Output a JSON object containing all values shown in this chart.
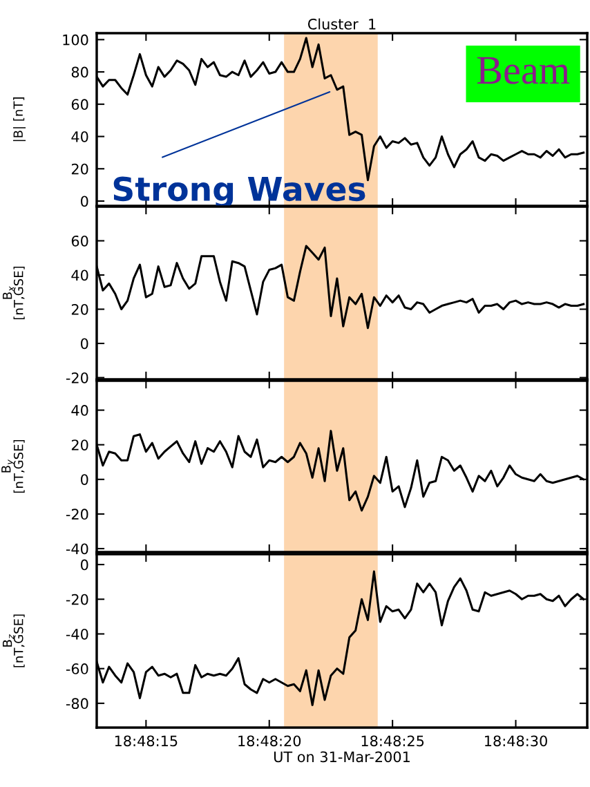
{
  "chart_data": [
    {
      "type": "line",
      "title": "Cluster  1",
      "ylabel": "|B| [nT]",
      "tick_labels": "y",
      "grid": false,
      "marker": "none",
      "line_style": "solid",
      "x": [
        "2001-03-31T18:48:13.00",
        "2001-03-31T18:48:13.25",
        "2001-03-31T18:48:13.50",
        "2001-03-31T18:48:13.75",
        "2001-03-31T18:48:14.00",
        "2001-03-31T18:48:14.25",
        "2001-03-31T18:48:14.50",
        "2001-03-31T18:48:14.75",
        "2001-03-31T18:48:15.00",
        "2001-03-31T18:48:15.25",
        "2001-03-31T18:48:15.50",
        "2001-03-31T18:48:15.75",
        "2001-03-31T18:48:16.00",
        "2001-03-31T18:48:16.25",
        "2001-03-31T18:48:16.50",
        "2001-03-31T18:48:16.75",
        "2001-03-31T18:48:17.00",
        "2001-03-31T18:48:17.25",
        "2001-03-31T18:48:17.50",
        "2001-03-31T18:48:17.75",
        "2001-03-31T18:48:18.00",
        "2001-03-31T18:48:18.25",
        "2001-03-31T18:48:18.50",
        "2001-03-31T18:48:18.75",
        "2001-03-31T18:48:19.00",
        "2001-03-31T18:48:19.25",
        "2001-03-31T18:48:19.50",
        "2001-03-31T18:48:19.75",
        "2001-03-31T18:48:20.00",
        "2001-03-31T18:48:20.25",
        "2001-03-31T18:48:20.50",
        "2001-03-31T18:48:20.75",
        "2001-03-31T18:48:21.00",
        "2001-03-31T18:48:21.25",
        "2001-03-31T18:48:21.50",
        "2001-03-31T18:48:21.75",
        "2001-03-31T18:48:22.00",
        "2001-03-31T18:48:22.25",
        "2001-03-31T18:48:22.50",
        "2001-03-31T18:48:22.75",
        "2001-03-31T18:48:23.00",
        "2001-03-31T18:48:23.25",
        "2001-03-31T18:48:23.50",
        "2001-03-31T18:48:23.75",
        "2001-03-31T18:48:24.00",
        "2001-03-31T18:48:24.25",
        "2001-03-31T18:48:24.50",
        "2001-03-31T18:48:24.75",
        "2001-03-31T18:48:25.00",
        "2001-03-31T18:48:25.25",
        "2001-03-31T18:48:25.50",
        "2001-03-31T18:48:25.75",
        "2001-03-31T18:48:26.00",
        "2001-03-31T18:48:26.25",
        "2001-03-31T18:48:26.50",
        "2001-03-31T18:48:26.75",
        "2001-03-31T18:48:27.00",
        "2001-03-31T18:48:27.25",
        "2001-03-31T18:48:27.50",
        "2001-03-31T18:48:27.75",
        "2001-03-31T18:48:28.00",
        "2001-03-31T18:48:28.25",
        "2001-03-31T18:48:28.50",
        "2001-03-31T18:48:28.75",
        "2001-03-31T18:48:29.00",
        "2001-03-31T18:48:29.25",
        "2001-03-31T18:48:29.50",
        "2001-03-31T18:48:29.75",
        "2001-03-31T18:48:30.00",
        "2001-03-31T18:48:30.25",
        "2001-03-31T18:48:30.50",
        "2001-03-31T18:48:30.75",
        "2001-03-31T18:48:31.00",
        "2001-03-31T18:48:31.25",
        "2001-03-31T18:48:31.50",
        "2001-03-31T18:48:31.75",
        "2001-03-31T18:48:32.00",
        "2001-03-31T18:48:32.25",
        "2001-03-31T18:48:32.50",
        "2001-03-31T18:48:32.75"
      ],
      "series": [
        {
          "color": "#000000",
          "values": [
            77,
            71,
            75,
            75,
            70,
            66,
            78,
            91,
            78,
            71,
            83,
            77,
            81,
            87,
            85,
            81,
            72,
            88,
            83,
            86,
            78,
            77,
            80,
            78,
            87,
            77,
            81,
            86,
            79,
            80,
            86,
            80,
            80,
            88,
            101,
            83,
            97,
            76,
            78,
            69,
            71,
            41,
            43,
            41,
            13,
            34,
            40,
            33,
            37,
            36,
            39,
            35,
            36,
            27,
            22,
            27,
            40,
            29,
            21,
            29,
            32,
            37,
            27,
            25,
            29,
            28,
            25,
            27,
            29,
            31,
            29,
            29,
            27,
            31,
            28,
            32,
            27,
            29,
            29,
            30
          ]
        }
      ],
      "xlim": [
        "2001-03-31T18:48:13.0",
        "2001-03-31T18:48:32.9"
      ],
      "xticks": [
        {
          "value": "2001-03-31T18:48:15",
          "label": null
        },
        {
          "value": "2001-03-31T18:48:20",
          "label": null
        },
        {
          "value": "2001-03-31T18:48:25",
          "label": null
        },
        {
          "value": "2001-03-31T18:48:30",
          "label": null
        }
      ],
      "ylim": [
        -3,
        104
      ],
      "yticks": [
        0,
        20,
        40,
        60,
        80,
        100
      ],
      "bands": [
        {
          "axis": "x",
          "from": "2001-03-31T18:48:20.6",
          "to": "2001-03-31T18:48:24.4",
          "color": "#fdd5ad"
        }
      ],
      "annotations": [
        "Strong Waves",
        "Beam"
      ]
    },
    {
      "type": "line",
      "ylabel": "B$_{x}$\n[nT,GSE]",
      "tick_labels": "y",
      "grid": false,
      "marker": "none",
      "line_style": "solid",
      "x": [
        "2001-03-31T18:48:13.00",
        "2001-03-31T18:48:13.25",
        "2001-03-31T18:48:13.50",
        "2001-03-31T18:48:13.75",
        "2001-03-31T18:48:14.00",
        "2001-03-31T18:48:14.25",
        "2001-03-31T18:48:14.50",
        "2001-03-31T18:48:14.75",
        "2001-03-31T18:48:15.00",
        "2001-03-31T18:48:15.25",
        "2001-03-31T18:48:15.50",
        "2001-03-31T18:48:15.75",
        "2001-03-31T18:48:16.00",
        "2001-03-31T18:48:16.25",
        "2001-03-31T18:48:16.50",
        "2001-03-31T18:48:16.75",
        "2001-03-31T18:48:17.00",
        "2001-03-31T18:48:17.25",
        "2001-03-31T18:48:17.50",
        "2001-03-31T18:48:17.75",
        "2001-03-31T18:48:18.00",
        "2001-03-31T18:48:18.25",
        "2001-03-31T18:48:18.50",
        "2001-03-31T18:48:18.75",
        "2001-03-31T18:48:19.00",
        "2001-03-31T18:48:19.25",
        "2001-03-31T18:48:19.50",
        "2001-03-31T18:48:19.75",
        "2001-03-31T18:48:20.00",
        "2001-03-31T18:48:20.25",
        "2001-03-31T18:48:20.50",
        "2001-03-31T18:48:20.75",
        "2001-03-31T18:48:21.00",
        "2001-03-31T18:48:21.25",
        "2001-03-31T18:48:21.50",
        "2001-03-31T18:48:21.75",
        "2001-03-31T18:48:22.00",
        "2001-03-31T18:48:22.25",
        "2001-03-31T18:48:22.50",
        "2001-03-31T18:48:22.75",
        "2001-03-31T18:48:23.00",
        "2001-03-31T18:48:23.25",
        "2001-03-31T18:48:23.50",
        "2001-03-31T18:48:23.75",
        "2001-03-31T18:48:24.00",
        "2001-03-31T18:48:24.25",
        "2001-03-31T18:48:24.50",
        "2001-03-31T18:48:24.75",
        "2001-03-31T18:48:25.00",
        "2001-03-31T18:48:25.25",
        "2001-03-31T18:48:25.50",
        "2001-03-31T18:48:25.75",
        "2001-03-31T18:48:26.00",
        "2001-03-31T18:48:26.25",
        "2001-03-31T18:48:26.50",
        "2001-03-31T18:48:26.75",
        "2001-03-31T18:48:27.00",
        "2001-03-31T18:48:27.25",
        "2001-03-31T18:48:27.50",
        "2001-03-31T18:48:27.75",
        "2001-03-31T18:48:28.00",
        "2001-03-31T18:48:28.25",
        "2001-03-31T18:48:28.50",
        "2001-03-31T18:48:28.75",
        "2001-03-31T18:48:29.00",
        "2001-03-31T18:48:29.25",
        "2001-03-31T18:48:29.50",
        "2001-03-31T18:48:29.75",
        "2001-03-31T18:48:30.00",
        "2001-03-31T18:48:30.25",
        "2001-03-31T18:48:30.50",
        "2001-03-31T18:48:30.75",
        "2001-03-31T18:48:31.00",
        "2001-03-31T18:48:31.25",
        "2001-03-31T18:48:31.50",
        "2001-03-31T18:48:31.75",
        "2001-03-31T18:48:32.00",
        "2001-03-31T18:48:32.25",
        "2001-03-31T18:48:32.50",
        "2001-03-31T18:48:32.75"
      ],
      "series": [
        {
          "color": "#000000",
          "values": [
            45,
            31,
            35,
            29,
            20,
            25,
            38,
            46,
            27,
            29,
            45,
            33,
            34,
            47,
            38,
            32,
            35,
            51,
            51,
            51,
            36,
            25,
            48,
            47,
            45,
            31,
            17,
            36,
            43,
            44,
            46,
            27,
            25,
            42,
            57,
            53,
            49,
            56,
            16,
            38,
            10,
            27,
            23,
            29,
            9,
            27,
            22,
            28,
            24,
            28,
            21,
            20,
            24,
            23,
            18,
            20,
            22,
            23,
            24,
            25,
            24,
            26,
            18,
            22,
            22,
            23,
            20,
            24,
            25,
            23,
            24,
            23,
            23,
            24,
            23,
            21,
            23,
            22,
            22,
            23
          ]
        }
      ],
      "xlim": [
        "2001-03-31T18:48:13.0",
        "2001-03-31T18:48:32.9"
      ],
      "xticks": [
        {
          "value": "2001-03-31T18:48:15",
          "label": null
        },
        {
          "value": "2001-03-31T18:48:20",
          "label": null
        },
        {
          "value": "2001-03-31T18:48:25",
          "label": null
        },
        {
          "value": "2001-03-31T18:48:30",
          "label": null
        }
      ],
      "ylim": [
        -21,
        80
      ],
      "yticks": [
        -20,
        0,
        20,
        40,
        60
      ],
      "bands": [
        {
          "axis": "x",
          "from": "2001-03-31T18:48:20.6",
          "to": "2001-03-31T18:48:24.4",
          "color": "#fdd5ad"
        }
      ]
    },
    {
      "type": "line",
      "ylabel": "B$_{y}$\n[nT,GSE]",
      "tick_labels": "y",
      "grid": false,
      "marker": "none",
      "line_style": "solid",
      "x": [
        "2001-03-31T18:48:13.00",
        "2001-03-31T18:48:13.25",
        "2001-03-31T18:48:13.50",
        "2001-03-31T18:48:13.75",
        "2001-03-31T18:48:14.00",
        "2001-03-31T18:48:14.25",
        "2001-03-31T18:48:14.50",
        "2001-03-31T18:48:14.75",
        "2001-03-31T18:48:15.00",
        "2001-03-31T18:48:15.25",
        "2001-03-31T18:48:15.50",
        "2001-03-31T18:48:15.75",
        "2001-03-31T18:48:16.00",
        "2001-03-31T18:48:16.25",
        "2001-03-31T18:48:16.50",
        "2001-03-31T18:48:16.75",
        "2001-03-31T18:48:17.00",
        "2001-03-31T18:48:17.25",
        "2001-03-31T18:48:17.50",
        "2001-03-31T18:48:17.75",
        "2001-03-31T18:48:18.00",
        "2001-03-31T18:48:18.25",
        "2001-03-31T18:48:18.50",
        "2001-03-31T18:48:18.75",
        "2001-03-31T18:48:19.00",
        "2001-03-31T18:48:19.25",
        "2001-03-31T18:48:19.50",
        "2001-03-31T18:48:19.75",
        "2001-03-31T18:48:20.00",
        "2001-03-31T18:48:20.25",
        "2001-03-31T18:48:20.50",
        "2001-03-31T18:48:20.75",
        "2001-03-31T18:48:21.00",
        "2001-03-31T18:48:21.25",
        "2001-03-31T18:48:21.50",
        "2001-03-31T18:48:21.75",
        "2001-03-31T18:48:22.00",
        "2001-03-31T18:48:22.25",
        "2001-03-31T18:48:22.50",
        "2001-03-31T18:48:22.75",
        "2001-03-31T18:48:23.00",
        "2001-03-31T18:48:23.25",
        "2001-03-31T18:48:23.50",
        "2001-03-31T18:48:23.75",
        "2001-03-31T18:48:24.00",
        "2001-03-31T18:48:24.25",
        "2001-03-31T18:48:24.50",
        "2001-03-31T18:48:24.75",
        "2001-03-31T18:48:25.00",
        "2001-03-31T18:48:25.25",
        "2001-03-31T18:48:25.50",
        "2001-03-31T18:48:25.75",
        "2001-03-31T18:48:26.00",
        "2001-03-31T18:48:26.25",
        "2001-03-31T18:48:26.50",
        "2001-03-31T18:48:26.75",
        "2001-03-31T18:48:27.00",
        "2001-03-31T18:48:27.25",
        "2001-03-31T18:48:27.50",
        "2001-03-31T18:48:27.75",
        "2001-03-31T18:48:28.00",
        "2001-03-31T18:48:28.25",
        "2001-03-31T18:48:28.50",
        "2001-03-31T18:48:28.75",
        "2001-03-31T18:48:29.00",
        "2001-03-31T18:48:29.25",
        "2001-03-31T18:48:29.50",
        "2001-03-31T18:48:29.75",
        "2001-03-31T18:48:30.00",
        "2001-03-31T18:48:30.25",
        "2001-03-31T18:48:30.50",
        "2001-03-31T18:48:30.75",
        "2001-03-31T18:48:31.00",
        "2001-03-31T18:48:31.25",
        "2001-03-31T18:48:31.50",
        "2001-03-31T18:48:31.75",
        "2001-03-31T18:48:32.00",
        "2001-03-31T18:48:32.25",
        "2001-03-31T18:48:32.50",
        "2001-03-31T18:48:32.75"
      ],
      "series": [
        {
          "color": "#000000",
          "values": [
            20,
            8,
            16,
            15,
            11,
            11,
            25,
            26,
            16,
            21,
            12,
            16,
            19,
            22,
            15,
            10,
            22,
            9,
            18,
            16,
            22,
            16,
            7,
            25,
            16,
            13,
            23,
            7,
            11,
            10,
            13,
            10,
            13,
            21,
            15,
            1,
            18,
            -1,
            28,
            5,
            18,
            -12,
            -7,
            -18,
            -10,
            2,
            -2,
            13,
            -7,
            -4,
            -16,
            -5,
            11,
            -10,
            -2,
            -1,
            13,
            11,
            5,
            8,
            1,
            -7,
            2,
            -1,
            5,
            -4,
            1,
            8,
            3,
            1,
            0,
            -1,
            3,
            -1,
            -2,
            -1,
            0,
            1,
            2,
            0
          ]
        }
      ],
      "xlim": [
        "2001-03-31T18:48:13.0",
        "2001-03-31T18:48:32.9"
      ],
      "xticks": [
        {
          "value": "2001-03-31T18:48:15",
          "label": null
        },
        {
          "value": "2001-03-31T18:48:20",
          "label": null
        },
        {
          "value": "2001-03-31T18:48:25",
          "label": null
        },
        {
          "value": "2001-03-31T18:48:30",
          "label": null
        }
      ],
      "ylim": [
        -42,
        57
      ],
      "yticks": [
        -40,
        -20,
        0,
        20,
        40
      ],
      "bands": [
        {
          "axis": "x",
          "from": "2001-03-31T18:48:20.6",
          "to": "2001-03-31T18:48:24.4",
          "color": "#fdd5ad"
        }
      ]
    },
    {
      "type": "line",
      "ylabel": "B$_{z}$\n[nT,GSE]",
      "xlabel": "UT on 31-Mar-2001",
      "grid": false,
      "marker": "none",
      "line_style": "solid",
      "x": [
        "2001-03-31T18:48:13.00",
        "2001-03-31T18:48:13.25",
        "2001-03-31T18:48:13.50",
        "2001-03-31T18:48:13.75",
        "2001-03-31T18:48:14.00",
        "2001-03-31T18:48:14.25",
        "2001-03-31T18:48:14.50",
        "2001-03-31T18:48:14.75",
        "2001-03-31T18:48:15.00",
        "2001-03-31T18:48:15.25",
        "2001-03-31T18:48:15.50",
        "2001-03-31T18:48:15.75",
        "2001-03-31T18:48:16.00",
        "2001-03-31T18:48:16.25",
        "2001-03-31T18:48:16.50",
        "2001-03-31T18:48:16.75",
        "2001-03-31T18:48:17.00",
        "2001-03-31T18:48:17.25",
        "2001-03-31T18:48:17.50",
        "2001-03-31T18:48:17.75",
        "2001-03-31T18:48:18.00",
        "2001-03-31T18:48:18.25",
        "2001-03-31T18:48:18.50",
        "2001-03-31T18:48:18.75",
        "2001-03-31T18:48:19.00",
        "2001-03-31T18:48:19.25",
        "2001-03-31T18:48:19.50",
        "2001-03-31T18:48:19.75",
        "2001-03-31T18:48:20.00",
        "2001-03-31T18:48:20.25",
        "2001-03-31T18:48:20.50",
        "2001-03-31T18:48:20.75",
        "2001-03-31T18:48:21.00",
        "2001-03-31T18:48:21.25",
        "2001-03-31T18:48:21.50",
        "2001-03-31T18:48:21.75",
        "2001-03-31T18:48:22.00",
        "2001-03-31T18:48:22.25",
        "2001-03-31T18:48:22.50",
        "2001-03-31T18:48:22.75",
        "2001-03-31T18:48:23.00",
        "2001-03-31T18:48:23.25",
        "2001-03-31T18:48:23.50",
        "2001-03-31T18:48:23.75",
        "2001-03-31T18:48:24.00",
        "2001-03-31T18:48:24.25",
        "2001-03-31T18:48:24.50",
        "2001-03-31T18:48:24.75",
        "2001-03-31T18:48:25.00",
        "2001-03-31T18:48:25.25",
        "2001-03-31T18:48:25.50",
        "2001-03-31T18:48:25.75",
        "2001-03-31T18:48:26.00",
        "2001-03-31T18:48:26.25",
        "2001-03-31T18:48:26.50",
        "2001-03-31T18:48:26.75",
        "2001-03-31T18:48:27.00",
        "2001-03-31T18:48:27.25",
        "2001-03-31T18:48:27.50",
        "2001-03-31T18:48:27.75",
        "2001-03-31T18:48:28.00",
        "2001-03-31T18:48:28.25",
        "2001-03-31T18:48:28.50",
        "2001-03-31T18:48:28.75",
        "2001-03-31T18:48:29.00",
        "2001-03-31T18:48:29.25",
        "2001-03-31T18:48:29.50",
        "2001-03-31T18:48:29.75",
        "2001-03-31T18:48:30.00",
        "2001-03-31T18:48:30.25",
        "2001-03-31T18:48:30.50",
        "2001-03-31T18:48:30.75",
        "2001-03-31T18:48:31.00",
        "2001-03-31T18:48:31.25",
        "2001-03-31T18:48:31.50",
        "2001-03-31T18:48:31.75",
        "2001-03-31T18:48:32.00",
        "2001-03-31T18:48:32.25",
        "2001-03-31T18:48:32.50",
        "2001-03-31T18:48:32.75"
      ],
      "series": [
        {
          "color": "#000000",
          "values": [
            -56,
            -68,
            -59,
            -64,
            -68,
            -57,
            -62,
            -77,
            -62,
            -59,
            -64,
            -63,
            -65,
            -63,
            -74,
            -74,
            -58,
            -65,
            -63,
            -64,
            -63,
            -64,
            -60,
            -54,
            -69,
            -72,
            -74,
            -66,
            -68,
            -66,
            -68,
            -70,
            -69,
            -73,
            -61,
            -81,
            -61,
            -78,
            -64,
            -60,
            -63,
            -42,
            -38,
            -20,
            -32,
            -4,
            -33,
            -24,
            -27,
            -26,
            -31,
            -26,
            -11,
            -16,
            -11,
            -16,
            -35,
            -21,
            -13,
            -8,
            -15,
            -26,
            -27,
            -16,
            -18,
            -17,
            -16,
            -15,
            -17,
            -20,
            -18,
            -18,
            -17,
            -20,
            -21,
            -18,
            -24,
            -20,
            -17,
            -20
          ]
        }
      ],
      "xlim": [
        "2001-03-31T18:48:13.0",
        "2001-03-31T18:48:32.9"
      ],
      "xticks": [
        {
          "value": "2001-03-31T18:48:15",
          "label": "18:48:15"
        },
        {
          "value": "2001-03-31T18:48:20",
          "label": "18:48:20"
        },
        {
          "value": "2001-03-31T18:48:25",
          "label": "18:48:25"
        },
        {
          "value": "2001-03-31T18:48:30",
          "label": "18:48:30"
        }
      ],
      "ylim": [
        -94,
        6
      ],
      "yticks": [
        -80,
        -60,
        -40,
        -20,
        0
      ],
      "bands": [
        {
          "axis": "x",
          "from": "2001-03-31T18:48:20.6",
          "to": "2001-03-31T18:48:24.4",
          "color": "#fdd5ad"
        }
      ]
    }
  ]
}
